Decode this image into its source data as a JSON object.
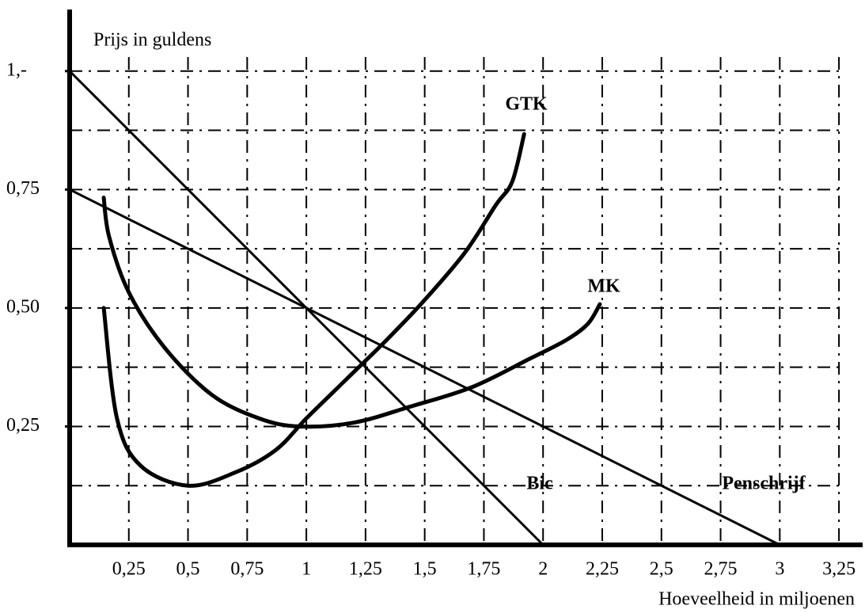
{
  "chart_data": {
    "type": "line",
    "ylabel": "Prijs in guldens",
    "xlabel": "Hoeveelheid in miljoenen",
    "xlim": [
      0,
      3.35
    ],
    "ylim": [
      0,
      1.13
    ],
    "xticks": [
      {
        "value": 0.25,
        "label": "0,25"
      },
      {
        "value": 0.5,
        "label": "0,5"
      },
      {
        "value": 0.75,
        "label": "0,75"
      },
      1,
      {
        "value": 1.25,
        "label": "1,25"
      },
      {
        "value": 1.5,
        "label": "1,5"
      },
      {
        "value": 1.75,
        "label": "1,75"
      },
      2,
      {
        "value": 2.25,
        "label": "2,25"
      },
      {
        "value": 2.5,
        "label": "2,5"
      },
      {
        "value": 2.75,
        "label": "2,75"
      },
      3,
      {
        "value": 3.25,
        "label": "3,25"
      }
    ],
    "yticks": [
      {
        "value": 1,
        "label": "1,-"
      },
      {
        "value": 0.75,
        "label": "0,75"
      },
      {
        "value": 0.5,
        "label": "0,50"
      },
      {
        "value": 0.25,
        "label": "0,25"
      }
    ],
    "ygrid": [
      0.125,
      0.25,
      0.375,
      0.5,
      0.625,
      0.75,
      0.875,
      1
    ],
    "grid": true,
    "series": [
      {
        "name": "GTK",
        "color": "#000000",
        "x": [
          0.144,
          0.2,
          0.3,
          0.5,
          0.7,
          0.87,
          1.0,
          1.17,
          1.34,
          1.5,
          1.67,
          1.8,
          1.87,
          1.92
        ],
        "values": [
          0.5,
          0.267,
          0.167,
          0.125,
          0.153,
          0.2,
          0.267,
          0.35,
          0.433,
          0.517,
          0.617,
          0.717,
          0.767,
          0.867
        ]
      },
      {
        "name": "MK",
        "color": "#000000",
        "x": [
          0.144,
          0.167,
          0.25,
          0.4,
          0.6,
          0.8,
          0.97,
          1.2,
          1.44,
          1.7,
          1.94,
          2.1,
          2.19,
          2.24
        ],
        "values": [
          0.733,
          0.65,
          0.533,
          0.417,
          0.317,
          0.267,
          0.25,
          0.258,
          0.292,
          0.333,
          0.392,
          0.433,
          0.467,
          0.508
        ]
      },
      {
        "name": "Bic",
        "color": "#000000",
        "x": [
          0,
          2
        ],
        "values": [
          1,
          0
        ]
      },
      {
        "name": "Penschrijf",
        "color": "#000000",
        "x": [
          0,
          3
        ],
        "values": [
          0.75,
          0
        ]
      }
    ]
  }
}
